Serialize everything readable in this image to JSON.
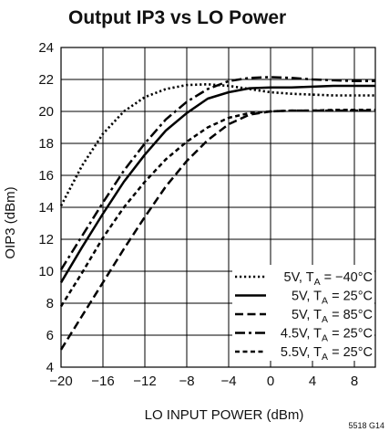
{
  "chart_data": {
    "type": "line",
    "title": "Output IP3 vs LO Power",
    "xlabel": "LO INPUT POWER (dBm)",
    "ylabel": "OIP3 (dBm)",
    "xlim": [
      -20,
      10
    ],
    "ylim": [
      4,
      24
    ],
    "xticks": [
      -20,
      -16,
      -12,
      -8,
      -4,
      0,
      4,
      8
    ],
    "xtick_labels": [
      "−20",
      "−16",
      "−12",
      "−8",
      "−4",
      "0",
      "4",
      "8"
    ],
    "yticks": [
      4,
      6,
      8,
      10,
      12,
      14,
      16,
      18,
      20,
      22,
      24
    ],
    "ytick_labels": [
      "4",
      "6",
      "8",
      "10",
      "12",
      "14",
      "16",
      "18",
      "20",
      "22",
      "24"
    ],
    "grid": true,
    "legend_position": "bottom-right",
    "figure_id": "5518 G14",
    "series": [
      {
        "name": "5V, TA = −40°C",
        "label_main": "5V, T",
        "label_sub": "A",
        "label_rest": " = −40°C",
        "style": "dotted",
        "x": [
          -20,
          -18,
          -16,
          -14,
          -12,
          -10,
          -8,
          -6,
          -4,
          -2,
          0,
          2,
          4,
          6,
          8,
          10
        ],
        "y": [
          14.1,
          16.6,
          18.6,
          20.0,
          20.9,
          21.4,
          21.65,
          21.7,
          21.6,
          21.4,
          21.2,
          21.1,
          21.05,
          21.0,
          21.0,
          21.0
        ]
      },
      {
        "name": "5V, TA = 25°C",
        "label_main": "5V, T",
        "label_sub": "A",
        "label_rest": " = 25°C",
        "style": "solid",
        "x": [
          -20,
          -18,
          -16,
          -14,
          -12,
          -10,
          -8,
          -6,
          -4,
          -2,
          0,
          2,
          4,
          6,
          8,
          10
        ],
        "y": [
          9.3,
          11.5,
          13.6,
          15.6,
          17.3,
          18.8,
          19.9,
          20.8,
          21.2,
          21.45,
          21.5,
          21.5,
          21.55,
          21.6,
          21.6,
          21.6
        ]
      },
      {
        "name": "5V, TA = 85°C",
        "label_main": "5V, T",
        "label_sub": "A",
        "label_rest": " = 85°C",
        "style": "dashed",
        "x": [
          -20,
          -18,
          -16,
          -14,
          -12,
          -10,
          -8,
          -6,
          -4,
          -2,
          0,
          2,
          4,
          6,
          8,
          10
        ],
        "y": [
          5.1,
          7.2,
          9.3,
          11.4,
          13.4,
          15.3,
          16.9,
          18.2,
          19.2,
          19.8,
          20.0,
          20.05,
          20.05,
          20.05,
          20.05,
          20.05
        ]
      },
      {
        "name": "4.5V, TA = 25°C",
        "label_main": "4.5V, T",
        "label_sub": "A",
        "label_rest": " = 25°C",
        "style": "dashdot",
        "x": [
          -20,
          -18,
          -16,
          -14,
          -12,
          -10,
          -8,
          -6,
          -4,
          -2,
          0,
          2,
          4,
          6,
          8,
          10
        ],
        "y": [
          10.1,
          12.2,
          14.3,
          16.3,
          18.0,
          19.5,
          20.6,
          21.4,
          21.9,
          22.1,
          22.15,
          22.1,
          22.0,
          21.95,
          21.9,
          21.9
        ]
      },
      {
        "name": "5.5V, TA = 25°C",
        "label_main": "5.5V, T",
        "label_sub": "A",
        "label_rest": " = 25°C",
        "style": "shortdash",
        "x": [
          -20,
          -18,
          -16,
          -14,
          -12,
          -10,
          -8,
          -6,
          -4,
          -2,
          0,
          2,
          4,
          6,
          8,
          10
        ],
        "y": [
          7.8,
          9.9,
          12.1,
          14.0,
          15.6,
          17.0,
          18.1,
          19.0,
          19.6,
          19.9,
          20.0,
          20.05,
          20.05,
          20.1,
          20.1,
          20.1
        ]
      }
    ]
  }
}
